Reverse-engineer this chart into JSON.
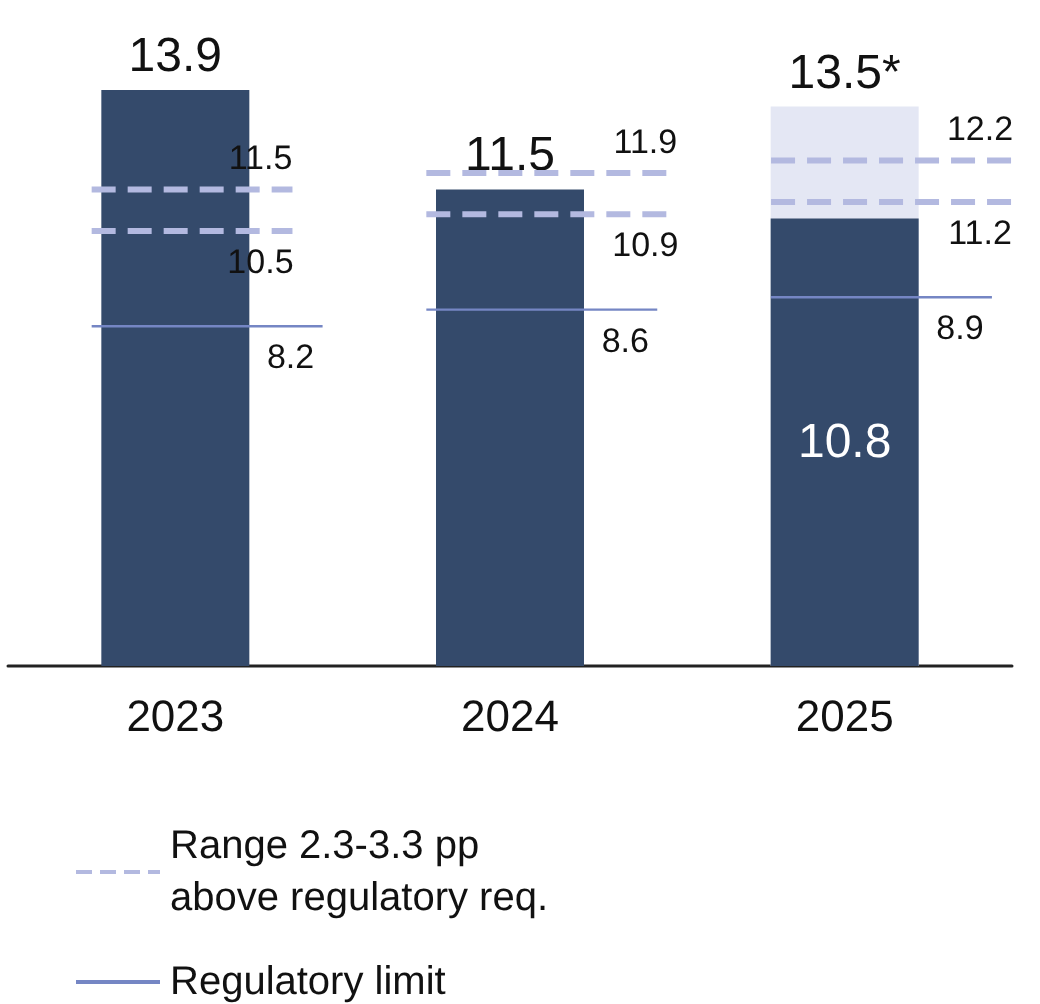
{
  "chart_data": {
    "type": "bar",
    "x": [
      2023,
      2024,
      2025
    ],
    "xlim": [
      2022.5,
      2025.5
    ],
    "xticks": [
      2023,
      2024,
      2025
    ],
    "series": [
      {
        "color": "#e4e7f4",
        "values": [
          null,
          null,
          13.5
        ],
        "value_labels": [
          null,
          null,
          "13.5*"
        ]
      },
      {
        "color": "#344a6b",
        "values": [
          13.9,
          11.5,
          10.8
        ],
        "data_labels": true
      },
      {
        "type": "line",
        "name": "Range 2.3-3.3 pp above regulatory req.",
        "color": "#b3b9e0",
        "line_style": "dashed",
        "x": [
          2022.75,
          2023.35,
          null,
          2023.75,
          2024.5,
          null,
          2024.78,
          2025.5
        ],
        "values": [
          11.5,
          11.5,
          null,
          11.9,
          11.9,
          null,
          12.2,
          12.2
        ],
        "value_labels": [
          null,
          "11.5",
          null,
          null,
          "11.9",
          null,
          null,
          "12.2"
        ]
      },
      {
        "type": "line",
        "color": "#b3b9e0",
        "line_style": "dashed",
        "x": [
          2022.75,
          2023.35,
          null,
          2023.75,
          2024.5,
          null,
          2024.78,
          2025.5
        ],
        "values": [
          10.5,
          10.5,
          null,
          10.9,
          10.9,
          null,
          11.2,
          11.2
        ],
        "value_labels": [
          null,
          "10.5",
          null,
          null,
          "10.9",
          null,
          null,
          "11.2"
        ]
      },
      {
        "type": "line",
        "name": "Regulatory limit",
        "color": "#7586c4",
        "line_style": "solid",
        "x": [
          2022.75,
          2023.44,
          null,
          2023.75,
          2024.44,
          null,
          2024.78,
          2025.44
        ],
        "values": [
          8.2,
          8.2,
          null,
          8.6,
          8.6,
          null,
          8.9,
          8.9
        ],
        "value_labels": [
          null,
          "8.2",
          null,
          null,
          "8.6",
          null,
          null,
          "8.9"
        ]
      }
    ],
    "legend": "bottom",
    "marker": "none"
  }
}
